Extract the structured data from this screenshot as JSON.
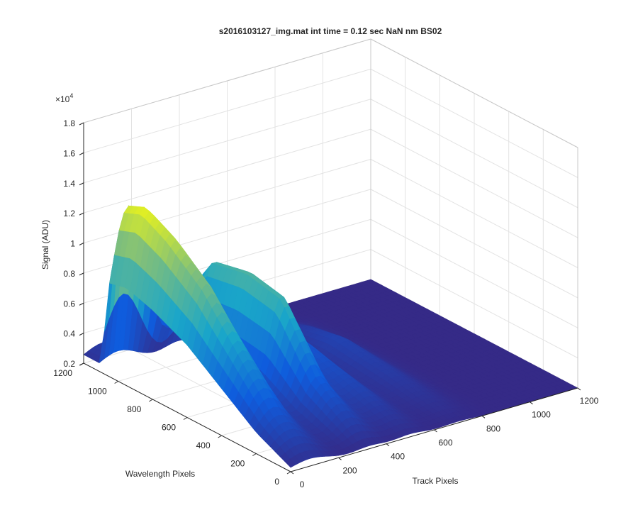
{
  "chart_data": {
    "type": "surface",
    "title": "s2016103127_img.mat int time = 0.12 sec  NaN nm BS02",
    "xlabel": "Track Pixels",
    "ylabel": "Wavelength Pixels",
    "zlabel": "Signal (ADU)",
    "z_exponent_label": "×10",
    "z_exponent_power": "4",
    "xlim": [
      0,
      1200
    ],
    "ylim": [
      0,
      1200
    ],
    "zlim": [
      0.2,
      1.8
    ],
    "x_ticks": [
      "0",
      "200",
      "400",
      "600",
      "800",
      "1000",
      "1200"
    ],
    "y_ticks": [
      "0",
      "200",
      "400",
      "600",
      "800",
      "1000",
      "1200"
    ],
    "z_ticks": [
      "0.2",
      "0.4",
      "0.6",
      "0.8",
      "1",
      "1.2",
      "1.4",
      "1.6",
      "1.8"
    ],
    "z_scale": 10000,
    "grid": true,
    "colormap": "parula",
    "colors": {
      "low": "#352a87",
      "mid_low": "#0f5cdd",
      "mid": "#1aa6c9",
      "mid_high": "#7fbf7b",
      "high": "#f9fb0e"
    },
    "series": [
      {
        "x_center": 80,
        "x_width": 150,
        "peak_profile": [
          {
            "y": 0,
            "z": 0.25
          },
          {
            "y": 200,
            "z": 0.45
          },
          {
            "y": 400,
            "z": 0.75
          },
          {
            "y": 600,
            "z": 1.05
          },
          {
            "y": 800,
            "z": 1.25
          },
          {
            "y": 950,
            "z": 1.35
          },
          {
            "y": 1050,
            "z": 1.3
          },
          {
            "y": 1100,
            "z": 0.3
          }
        ]
      },
      {
        "x_center": 330,
        "x_width": 110,
        "peak_profile": [
          {
            "y": 0,
            "z": 0.22
          },
          {
            "y": 300,
            "z": 0.5
          },
          {
            "y": 500,
            "z": 0.9
          },
          {
            "y": 700,
            "z": 0.95
          },
          {
            "y": 900,
            "z": 0.9
          },
          {
            "y": 1050,
            "z": 0.6
          },
          {
            "y": 1100,
            "z": 0.25
          }
        ]
      },
      {
        "x_center": 500,
        "x_width": 110,
        "peak_profile": [
          {
            "y": 0,
            "z": 0.22
          },
          {
            "y": 300,
            "z": 0.35
          },
          {
            "y": 600,
            "z": 0.45
          },
          {
            "y": 800,
            "z": 0.5
          },
          {
            "y": 1000,
            "z": 0.35
          },
          {
            "y": 1100,
            "z": 0.22
          }
        ]
      },
      {
        "x_center": 700,
        "x_width": 120,
        "peak_profile": [
          {
            "y": 0,
            "z": 0.21
          },
          {
            "y": 400,
            "z": 0.3
          },
          {
            "y": 700,
            "z": 0.35
          },
          {
            "y": 900,
            "z": 0.3
          },
          {
            "y": 1100,
            "z": 0.21
          }
        ]
      }
    ]
  }
}
